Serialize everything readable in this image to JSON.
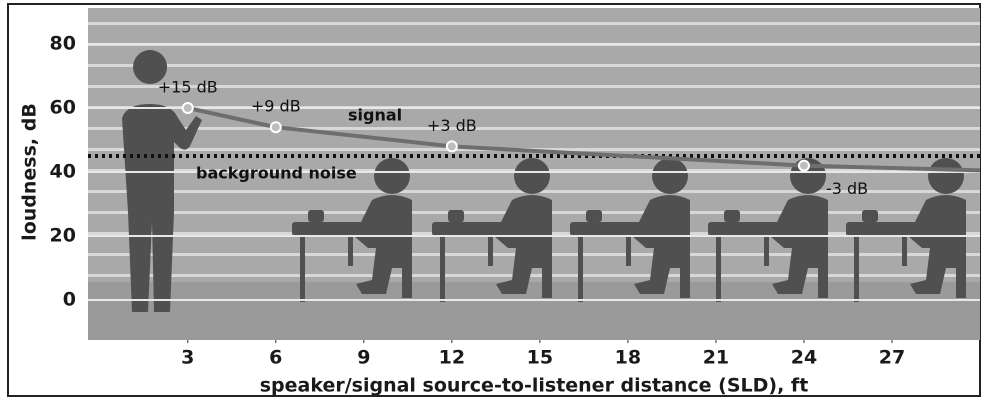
{
  "chart_data": {
    "type": "line",
    "x_label": "speaker/signal source-to-listener distance (SLD), ft",
    "y_label": "loudness, dB",
    "xlim": [
      -0.4,
      30
    ],
    "ylim": [
      -12.5,
      91.25
    ],
    "xticks": [
      3,
      6,
      9,
      12,
      15,
      18,
      21,
      24,
      27
    ],
    "yticks": [
      0,
      20,
      40,
      60,
      80
    ],
    "series": [
      {
        "name": "signal",
        "color": "#6e6e6e",
        "x": [
          3,
          6,
          12,
          24,
          30
        ],
        "values": [
          60,
          54,
          48,
          42,
          40.5
        ]
      }
    ],
    "background_noise": {
      "label": "background noise",
      "value": 45
    },
    "annotations": [
      {
        "text": "+15 dB",
        "x": 3,
        "y": 60
      },
      {
        "text": "+9 dB",
        "x": 6,
        "y": 54
      },
      {
        "text": "+3 dB",
        "x": 12,
        "y": 48
      },
      {
        "text": "-3 dB",
        "x": 24,
        "y": 42
      }
    ]
  }
}
